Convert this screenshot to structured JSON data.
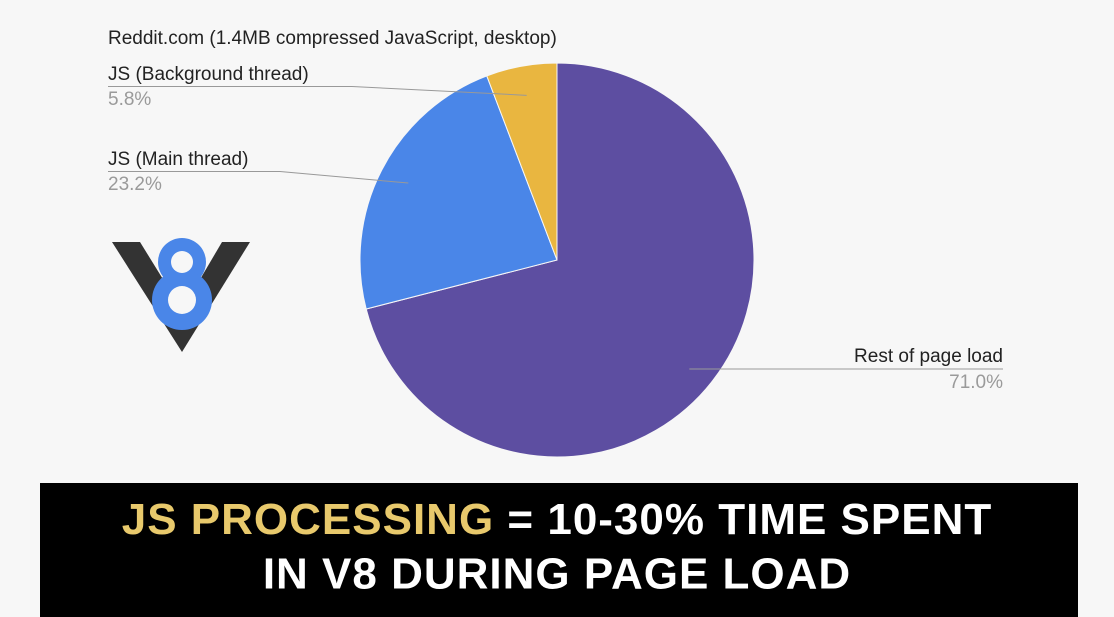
{
  "chart_data": {
    "type": "pie",
    "title": "Reddit.com (1.4MB compressed JavaScript, desktop)",
    "categories": [
      "Rest of page load",
      "JS (Main thread)",
      "JS (Background thread)"
    ],
    "values": [
      71.0,
      23.2,
      5.8
    ],
    "value_labels": [
      "71.0%",
      "23.2%",
      "5.8%"
    ],
    "colors": [
      "#5d4ea1",
      "#4a86e8",
      "#e9b640"
    ]
  },
  "caption": {
    "highlight": "JS PROCESSING",
    "line1": "= 10-30% TIME SPENT",
    "line2": "IN V8 DURING PAGE LOAD"
  }
}
